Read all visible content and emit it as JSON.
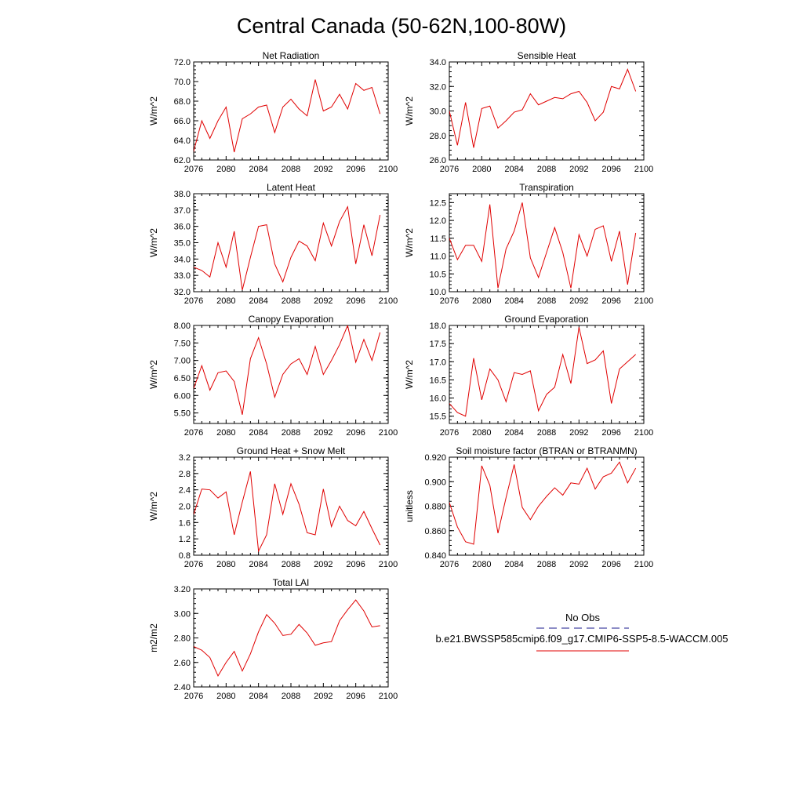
{
  "figure": {
    "title": "Central Canada (50-62N,100-80W)"
  },
  "legend": {
    "obs_label": "No Obs",
    "obs_color": "#1a1a8c",
    "model_label": "b.e21.BWSSP585cmip6.f09_g17.CMIP6-SSP5-8.5-WACCM.005",
    "model_color": "#e00000"
  },
  "chart_data": [
    {
      "type": "line",
      "title": "Net Radiation",
      "ylabel": "W/m^2",
      "xlim": [
        2076,
        2100
      ],
      "xticks": [
        2076,
        2080,
        2084,
        2088,
        2092,
        2096,
        2100
      ],
      "ylim": [
        62,
        72
      ],
      "yticks": [
        62,
        64,
        66,
        68,
        70,
        72
      ],
      "ydec": 1,
      "x": [
        2075,
        2076,
        2077,
        2078,
        2079,
        2080,
        2081,
        2082,
        2083,
        2084,
        2085,
        2086,
        2087,
        2088,
        2089,
        2090,
        2091,
        2092,
        2093,
        2094,
        2095,
        2096,
        2097,
        2098,
        2099
      ],
      "series": [
        {
          "name": "b.e21.BWSSP585cmip6.f09_g17.CMIP6-SSP5-8.5-WACCM.005",
          "color": "#e00000",
          "values": [
            65.3,
            62.9,
            66.0,
            64.2,
            66.0,
            67.4,
            62.8,
            66.2,
            66.7,
            67.4,
            67.6,
            64.8,
            67.4,
            68.2,
            67.2,
            66.5,
            70.2,
            67.0,
            67.4,
            68.7,
            67.2,
            69.8,
            69.1,
            69.4,
            66.7
          ]
        }
      ]
    },
    {
      "type": "line",
      "title": "Sensible Heat",
      "ylabel": "W/m^2",
      "xlim": [
        2076,
        2100
      ],
      "xticks": [
        2076,
        2080,
        2084,
        2088,
        2092,
        2096,
        2100
      ],
      "ylim": [
        26,
        34
      ],
      "yticks": [
        26,
        28,
        30,
        32,
        34
      ],
      "ydec": 1,
      "x": [
        2076,
        2077,
        2078,
        2079,
        2080,
        2081,
        2082,
        2083,
        2084,
        2085,
        2086,
        2087,
        2088,
        2089,
        2090,
        2091,
        2092,
        2093,
        2094,
        2095,
        2096,
        2097,
        2098,
        2099
      ],
      "series": [
        {
          "name": "b.e21.BWSSP585cmip6.f09_g17.CMIP6-SSP5-8.5-WACCM.005",
          "color": "#e00000",
          "values": [
            30.0,
            27.2,
            30.7,
            27.0,
            30.2,
            30.4,
            28.6,
            29.2,
            29.9,
            30.1,
            31.4,
            30.5,
            30.8,
            31.1,
            31.0,
            31.4,
            31.6,
            30.7,
            29.2,
            29.9,
            32.0,
            31.8,
            33.4,
            31.6
          ]
        }
      ]
    },
    {
      "type": "line",
      "title": "Latent Heat",
      "ylabel": "W/m^2",
      "xlim": [
        2076,
        2100
      ],
      "xticks": [
        2076,
        2080,
        2084,
        2088,
        2092,
        2096,
        2100
      ],
      "ylim": [
        32,
        38
      ],
      "yticks": [
        32,
        33,
        34,
        35,
        36,
        37,
        38
      ],
      "ydec": 1,
      "x": [
        2076,
        2077,
        2078,
        2079,
        2080,
        2081,
        2082,
        2083,
        2084,
        2085,
        2086,
        2087,
        2088,
        2089,
        2090,
        2091,
        2092,
        2093,
        2094,
        2095,
        2096,
        2097,
        2098,
        2099
      ],
      "series": [
        {
          "name": "b.e21.BWSSP585cmip6.f09_g17.CMIP6-SSP5-8.5-WACCM.005",
          "color": "#e00000",
          "values": [
            33.5,
            33.3,
            32.9,
            35.0,
            33.5,
            35.7,
            32.1,
            34.1,
            36.0,
            36.1,
            33.7,
            32.6,
            34.1,
            35.1,
            34.8,
            33.9,
            36.2,
            34.8,
            36.3,
            37.2,
            33.7,
            36.1,
            34.2,
            36.7
          ]
        }
      ]
    },
    {
      "type": "line",
      "title": "Transpiration",
      "ylabel": "W/m^2",
      "xlim": [
        2076,
        2100
      ],
      "xticks": [
        2076,
        2080,
        2084,
        2088,
        2092,
        2096,
        2100
      ],
      "ylim": [
        10,
        12.75
      ],
      "yticks": [
        10.0,
        10.5,
        11.0,
        11.5,
        12.0,
        12.5
      ],
      "ydec": 1,
      "x": [
        2076,
        2077,
        2078,
        2079,
        2080,
        2081,
        2082,
        2083,
        2084,
        2085,
        2086,
        2087,
        2088,
        2089,
        2090,
        2091,
        2092,
        2093,
        2094,
        2095,
        2096,
        2097,
        2098,
        2099
      ],
      "series": [
        {
          "name": "b.e21.BWSSP585cmip6.f09_g17.CMIP6-SSP5-8.5-WACCM.005",
          "color": "#e00000",
          "values": [
            11.5,
            10.9,
            11.3,
            11.3,
            10.85,
            12.45,
            10.1,
            11.2,
            11.7,
            12.5,
            10.95,
            10.4,
            11.1,
            11.8,
            11.1,
            10.1,
            11.6,
            11.0,
            11.75,
            11.85,
            10.85,
            11.7,
            10.2,
            11.65
          ]
        }
      ]
    },
    {
      "type": "line",
      "title": "Canopy Evaporation",
      "ylabel": "W/m^2",
      "xlim": [
        2076,
        2100
      ],
      "xticks": [
        2076,
        2080,
        2084,
        2088,
        2092,
        2096,
        2100
      ],
      "ylim": [
        5.2,
        8.0
      ],
      "yticks": [
        5.5,
        6.0,
        6.5,
        7.0,
        7.5,
        8.0
      ],
      "ydec": 2,
      "x": [
        2076,
        2077,
        2078,
        2079,
        2080,
        2081,
        2082,
        2083,
        2084,
        2085,
        2086,
        2087,
        2088,
        2089,
        2090,
        2091,
        2092,
        2093,
        2094,
        2095,
        2096,
        2097,
        2098,
        2099
      ],
      "series": [
        {
          "name": "b.e21.BWSSP585cmip6.f09_g17.CMIP6-SSP5-8.5-WACCM.005",
          "color": "#e00000",
          "values": [
            6.2,
            6.85,
            6.15,
            6.65,
            6.7,
            6.4,
            5.45,
            7.05,
            7.65,
            6.9,
            5.95,
            6.6,
            6.9,
            7.05,
            6.6,
            7.4,
            6.6,
            7.0,
            7.45,
            8.0,
            6.95,
            7.6,
            7.0,
            7.8
          ]
        }
      ]
    },
    {
      "type": "line",
      "title": "Ground Evaporation",
      "ylabel": "W/m^2",
      "xlim": [
        2076,
        2100
      ],
      "xticks": [
        2076,
        2080,
        2084,
        2088,
        2092,
        2096,
        2100
      ],
      "ylim": [
        15.3,
        18.0
      ],
      "yticks": [
        15.5,
        16.0,
        16.5,
        17.0,
        17.5,
        18.0
      ],
      "ydec": 1,
      "x": [
        2076,
        2077,
        2078,
        2079,
        2080,
        2081,
        2082,
        2083,
        2084,
        2085,
        2086,
        2087,
        2088,
        2089,
        2090,
        2091,
        2092,
        2093,
        2094,
        2095,
        2096,
        2097,
        2098,
        2099
      ],
      "series": [
        {
          "name": "b.e21.BWSSP585cmip6.f09_g17.CMIP6-SSP5-8.5-WACCM.005",
          "color": "#e00000",
          "values": [
            15.85,
            15.6,
            15.5,
            17.1,
            15.95,
            16.8,
            16.5,
            15.9,
            16.7,
            16.65,
            16.75,
            15.65,
            16.1,
            16.3,
            17.2,
            16.4,
            17.95,
            16.95,
            17.05,
            17.3,
            15.85,
            16.8,
            17.0,
            17.2
          ]
        }
      ]
    },
    {
      "type": "line",
      "title": "Ground Heat + Snow Melt",
      "ylabel": "W/m^2",
      "xlim": [
        2076,
        2100
      ],
      "xticks": [
        2076,
        2080,
        2084,
        2088,
        2092,
        2096,
        2100
      ],
      "ylim": [
        0.8,
        3.2
      ],
      "yticks": [
        0.8,
        1.2,
        1.6,
        2.0,
        2.4,
        2.8,
        3.2
      ],
      "ydec": 1,
      "x": [
        2076,
        2077,
        2078,
        2079,
        2080,
        2081,
        2082,
        2083,
        2084,
        2085,
        2086,
        2087,
        2088,
        2089,
        2090,
        2091,
        2092,
        2093,
        2094,
        2095,
        2096,
        2097,
        2098,
        2099
      ],
      "series": [
        {
          "name": "b.e21.BWSSP585cmip6.f09_g17.CMIP6-SSP5-8.5-WACCM.005",
          "color": "#e00000",
          "values": [
            1.8,
            2.42,
            2.4,
            2.2,
            2.35,
            1.3,
            2.1,
            2.85,
            0.9,
            1.3,
            2.55,
            1.8,
            2.55,
            2.05,
            1.35,
            1.3,
            2.42,
            1.5,
            2.0,
            1.65,
            1.52,
            1.87,
            1.45,
            1.05
          ]
        }
      ]
    },
    {
      "type": "line",
      "title": "Soil moisture factor (BTRAN or BTRANMN)",
      "ylabel": "unitless",
      "xlim": [
        2076,
        2100
      ],
      "xticks": [
        2076,
        2080,
        2084,
        2088,
        2092,
        2096,
        2100
      ],
      "ylim": [
        0.84,
        0.92
      ],
      "yticks": [
        0.84,
        0.86,
        0.88,
        0.9,
        0.92
      ],
      "ydec": 3,
      "x": [
        2076,
        2077,
        2078,
        2079,
        2080,
        2081,
        2082,
        2083,
        2084,
        2085,
        2086,
        2087,
        2088,
        2089,
        2090,
        2091,
        2092,
        2093,
        2094,
        2095,
        2096,
        2097,
        2098,
        2099
      ],
      "series": [
        {
          "name": "b.e21.BWSSP585cmip6.f09_g17.CMIP6-SSP5-8.5-WACCM.005",
          "color": "#e00000",
          "values": [
            0.883,
            0.863,
            0.851,
            0.849,
            0.913,
            0.897,
            0.858,
            0.887,
            0.914,
            0.879,
            0.869,
            0.88,
            0.888,
            0.895,
            0.889,
            0.899,
            0.898,
            0.911,
            0.894,
            0.904,
            0.907,
            0.916,
            0.899,
            0.911
          ]
        }
      ]
    },
    {
      "type": "line",
      "title": "Total LAI",
      "ylabel": "m2/m2",
      "xlim": [
        2076,
        2100
      ],
      "xticks": [
        2076,
        2080,
        2084,
        2088,
        2092,
        2096,
        2100
      ],
      "ylim": [
        2.4,
        3.2
      ],
      "yticks": [
        2.4,
        2.6,
        2.8,
        3.0,
        3.2
      ],
      "ydec": 2,
      "x": [
        2076,
        2077,
        2078,
        2079,
        2080,
        2081,
        2082,
        2083,
        2084,
        2085,
        2086,
        2087,
        2088,
        2089,
        2090,
        2091,
        2092,
        2093,
        2094,
        2095,
        2096,
        2097,
        2098,
        2099
      ],
      "series": [
        {
          "name": "b.e21.BWSSP585cmip6.f09_g17.CMIP6-SSP5-8.5-WACCM.005",
          "color": "#e00000",
          "values": [
            2.73,
            2.7,
            2.64,
            2.49,
            2.6,
            2.69,
            2.53,
            2.67,
            2.85,
            2.99,
            2.92,
            2.82,
            2.83,
            2.91,
            2.84,
            2.74,
            2.76,
            2.77,
            2.94,
            3.03,
            3.11,
            3.02,
            2.89,
            2.9
          ]
        }
      ]
    }
  ]
}
